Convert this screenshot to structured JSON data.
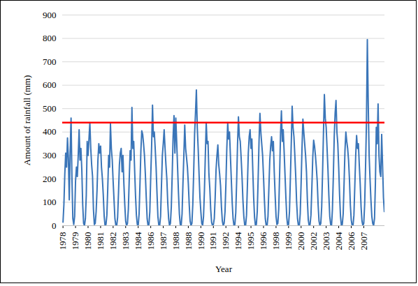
{
  "chart_data": {
    "type": "line",
    "x_label": "Year",
    "y_label": "Amount of rainfall (mm)",
    "color": "#3a75b8",
    "grid": true,
    "ylim": [
      0,
      900
    ],
    "yticks": [
      0,
      100,
      200,
      300,
      400,
      500,
      600,
      700,
      800,
      900
    ],
    "reference_line": {
      "value": 440,
      "color": "#ff0000"
    },
    "categories": [
      "1978",
      null,
      null,
      null,
      null,
      null,
      null,
      null,
      null,
      null,
      null,
      null,
      null,
      null,
      "1979",
      null,
      null,
      null,
      null,
      null,
      null,
      null,
      null,
      null,
      null,
      null,
      null,
      null,
      "1980",
      null,
      null,
      null,
      null,
      null,
      null,
      null,
      null,
      null,
      null,
      null,
      null,
      null,
      "1981",
      null,
      null,
      null,
      null,
      null,
      null,
      null,
      null,
      null,
      null,
      null,
      null,
      null,
      "1982",
      null,
      null,
      null,
      null,
      null,
      null,
      null,
      null,
      null,
      null,
      null,
      null,
      null,
      "1983",
      null,
      null,
      null,
      null,
      null,
      null,
      null,
      null,
      null,
      null,
      null,
      null,
      null,
      "1984",
      null,
      null,
      null,
      null,
      null,
      null,
      null,
      null,
      null,
      null,
      null,
      null,
      null,
      "1986",
      null,
      null,
      null,
      null,
      null,
      null,
      null,
      null,
      null,
      null,
      null,
      null,
      null,
      "1987",
      null,
      null,
      null,
      null,
      null,
      null,
      null,
      null,
      null,
      null,
      null,
      null,
      null,
      "1988",
      null,
      null,
      null,
      null,
      null,
      null,
      null,
      null,
      null,
      null,
      null,
      null,
      null,
      "1988",
      null,
      null,
      null,
      null,
      null,
      null,
      null,
      null,
      null,
      null,
      null,
      null,
      null,
      "1990",
      null,
      null,
      null,
      null,
      null,
      null,
      null,
      null,
      null,
      null,
      null,
      null,
      null,
      "1991",
      null,
      null,
      null,
      null,
      null,
      null,
      null,
      null,
      null,
      null,
      null,
      null,
      null,
      "1992",
      null,
      null,
      null,
      null,
      null,
      null,
      null,
      null,
      null,
      null,
      null,
      null,
      null,
      "1994",
      null,
      null,
      null,
      null,
      null,
      null,
      null,
      null,
      null,
      null,
      null,
      null,
      null,
      "1995",
      null,
      null,
      null,
      null,
      null,
      null,
      null,
      null,
      null,
      null,
      null,
      null,
      null,
      "1996",
      null,
      null,
      null,
      null,
      null,
      null,
      null,
      null,
      null,
      null,
      null,
      null,
      null,
      "1998",
      null,
      null,
      null,
      null,
      null,
      null,
      null,
      null,
      null,
      null,
      null,
      null,
      null,
      "1999",
      null,
      null,
      null,
      null,
      null,
      null,
      null,
      null,
      null,
      null,
      null,
      null,
      null,
      "2000",
      null,
      null,
      null,
      null,
      null,
      null,
      null,
      null,
      null,
      null,
      null,
      null,
      null,
      "2002",
      null,
      null,
      null,
      null,
      null,
      null,
      null,
      null,
      null,
      null,
      null,
      null,
      null,
      "2003",
      null,
      null,
      null,
      null,
      null,
      null,
      null,
      null,
      null,
      null,
      null,
      null,
      null,
      "2004",
      null,
      null,
      null,
      null,
      null,
      null,
      null,
      null,
      null,
      null,
      null,
      null,
      null,
      "2006",
      null,
      null,
      null,
      null,
      null,
      null,
      null,
      null,
      null,
      null,
      null,
      null,
      null,
      "2007",
      null,
      null,
      null,
      null,
      null,
      null,
      null,
      null,
      null,
      null,
      null,
      null,
      null,
      null,
      null,
      null,
      null,
      null,
      null,
      null,
      null,
      null,
      null
    ],
    "values": [
      15,
      90,
      220,
      310,
      250,
      375,
      290,
      110,
      320,
      460,
      200,
      30,
      5,
      40,
      190,
      250,
      210,
      300,
      410,
      280,
      330,
      240,
      90,
      10,
      0,
      30,
      130,
      360,
      300,
      370,
      440,
      330,
      260,
      210,
      70,
      5,
      10,
      60,
      150,
      280,
      350,
      310,
      340,
      250,
      200,
      130,
      40,
      0,
      5,
      45,
      160,
      300,
      250,
      435,
      330,
      280,
      190,
      110,
      30,
      2,
      0,
      35,
      140,
      260,
      310,
      330,
      230,
      300,
      180,
      90,
      20,
      0,
      10,
      70,
      200,
      320,
      280,
      505,
      330,
      360,
      240,
      130,
      45,
      5,
      0,
      50,
      180,
      320,
      405,
      390,
      350,
      300,
      220,
      120,
      30,
      0,
      5,
      60,
      210,
      340,
      515,
      380,
      400,
      330,
      250,
      140,
      40,
      3,
      0,
      40,
      170,
      300,
      350,
      410,
      330,
      260,
      200,
      100,
      30,
      0,
      10,
      80,
      220,
      380,
      470,
      310,
      460,
      360,
      250,
      140,
      50,
      5,
      0,
      50,
      180,
      300,
      430,
      330,
      290,
      250,
      180,
      90,
      20,
      0,
      10,
      90,
      230,
      390,
      480,
      580,
      420,
      330,
      220,
      120,
      60,
      10,
      0,
      40,
      150,
      300,
      440,
      350,
      360,
      220,
      160,
      70,
      15,
      0,
      5,
      30,
      120,
      240,
      300,
      345,
      260,
      220,
      170,
      80,
      20,
      0,
      10,
      60,
      180,
      330,
      440,
      370,
      400,
      300,
      200,
      100,
      30,
      0,
      5,
      55,
      190,
      350,
      465,
      380,
      360,
      290,
      210,
      110,
      40,
      2,
      0,
      45,
      170,
      310,
      380,
      410,
      330,
      370,
      240,
      120,
      35,
      0,
      5,
      60,
      200,
      360,
      480,
      400,
      350,
      300,
      210,
      110,
      30,
      0,
      0,
      40,
      160,
      280,
      340,
      380,
      320,
      360,
      230,
      130,
      40,
      5,
      10,
      70,
      220,
      390,
      490,
      360,
      410,
      320,
      220,
      120,
      35,
      0,
      5,
      60,
      200,
      350,
      510,
      420,
      380,
      300,
      210,
      100,
      30,
      0,
      0,
      50,
      180,
      330,
      455,
      400,
      350,
      300,
      230,
      110,
      25,
      0,
      5,
      45,
      160,
      290,
      365,
      340,
      300,
      250,
      190,
      90,
      20,
      0,
      10,
      80,
      230,
      400,
      560,
      460,
      420,
      330,
      240,
      130,
      40,
      5,
      0,
      70,
      210,
      380,
      480,
      535,
      400,
      350,
      250,
      130,
      40,
      0,
      5,
      50,
      180,
      320,
      400,
      360,
      330,
      280,
      200,
      90,
      25,
      0,
      0,
      45,
      170,
      300,
      385,
      330,
      350,
      260,
      180,
      80,
      20,
      0,
      10,
      90,
      250,
      440,
      795,
      520,
      300,
      200,
      110,
      40,
      10,
      0,
      30,
      180,
      420,
      350,
      520,
      300,
      230,
      210,
      390,
      260,
      120,
      60
    ]
  }
}
